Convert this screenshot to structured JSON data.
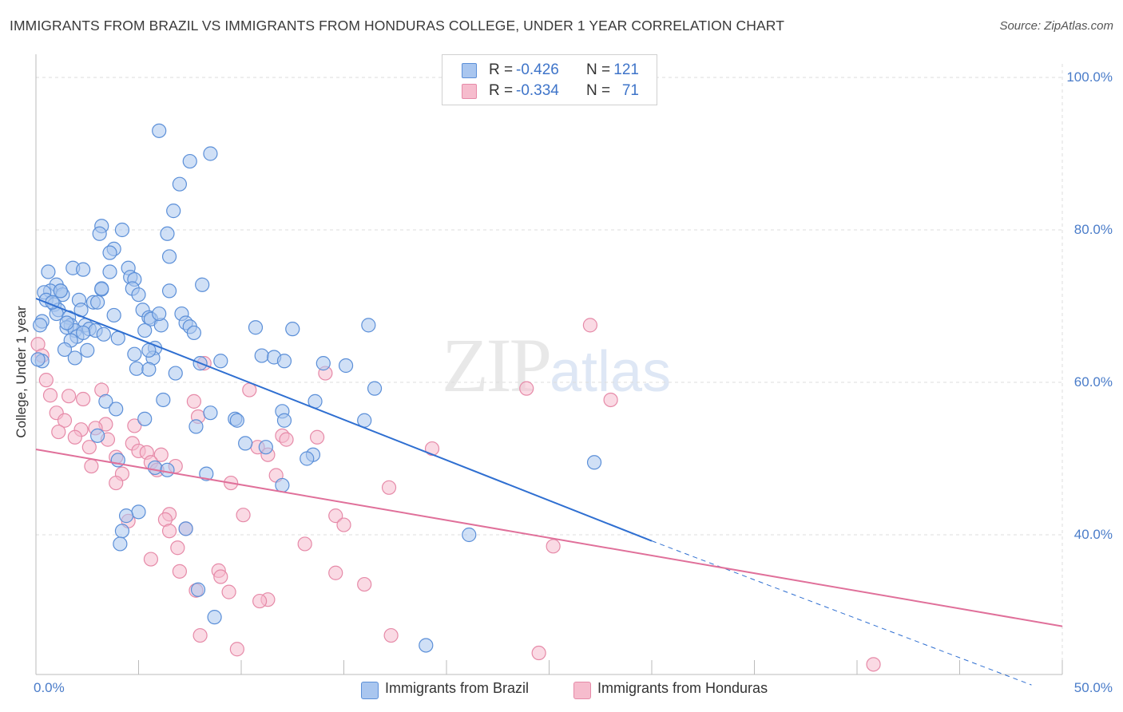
{
  "title": "IMMIGRANTS FROM BRAZIL VS IMMIGRANTS FROM HONDURAS COLLEGE, UNDER 1 YEAR CORRELATION CHART",
  "source": "Source: ZipAtlas.com",
  "watermark": {
    "zip": "ZIP",
    "atlas": "atlas"
  },
  "legend": {
    "brazil": {
      "r_label": "R =",
      "r_value": "-0.426",
      "n_label": "N =",
      "n_value": "121"
    },
    "honduras": {
      "r_label": "R =",
      "r_value": "-0.334",
      "n_label": "N =",
      "n_value": "71"
    }
  },
  "colors": {
    "brazil_fill": "#a9c6ef",
    "brazil_stroke": "#5b8fd8",
    "brazil_line": "#2f6fd1",
    "honduras_fill": "#f6bccd",
    "honduras_stroke": "#e68aa8",
    "honduras_line": "#e0709a",
    "tick_text": "#4a7cc9",
    "grid": "#dddddd"
  },
  "chart_data": {
    "type": "scatter",
    "title": "IMMIGRANTS FROM BRAZIL VS IMMIGRANTS FROM HONDURAS COLLEGE, UNDER 1 YEAR CORRELATION CHART",
    "xlabel": "",
    "ylabel": "College, Under 1 year",
    "x_tick_labels": [
      "0.0%",
      "50.0%"
    ],
    "y_tick_labels": [
      "40.0%",
      "60.0%",
      "80.0%",
      "100.0%"
    ],
    "xlim": [
      0,
      50
    ],
    "ylim": [
      21.5,
      104
    ],
    "grid": true,
    "legend_position": "top-center",
    "series": [
      {
        "name": "Immigrants from Brazil",
        "trendline": {
          "x": [
            0,
            30
          ],
          "y": [
            71.0,
            39.2
          ],
          "dashed_extension_to": [
            48.5,
            20.3
          ]
        },
        "points": [
          [
            6.0,
            93.0
          ],
          [
            8.5,
            90.0
          ],
          [
            7.5,
            89.0
          ],
          [
            7.0,
            86.0
          ],
          [
            6.7,
            82.5
          ],
          [
            3.2,
            80.5
          ],
          [
            4.2,
            80.0
          ],
          [
            3.1,
            79.5
          ],
          [
            6.4,
            79.5
          ],
          [
            3.8,
            77.5
          ],
          [
            3.6,
            77.0
          ],
          [
            6.5,
            76.5
          ],
          [
            1.8,
            75.0
          ],
          [
            4.5,
            75.0
          ],
          [
            2.3,
            74.8
          ],
          [
            0.6,
            74.5
          ],
          [
            3.6,
            74.5
          ],
          [
            4.6,
            73.8
          ],
          [
            4.8,
            73.5
          ],
          [
            1.0,
            72.8
          ],
          [
            1.2,
            72.0
          ],
          [
            8.1,
            72.8
          ],
          [
            0.7,
            72.0
          ],
          [
            0.4,
            71.8
          ],
          [
            4.7,
            72.3
          ],
          [
            3.2,
            72.2
          ],
          [
            6.5,
            72.0
          ],
          [
            5.0,
            71.5
          ],
          [
            1.3,
            71.5
          ],
          [
            2.1,
            70.8
          ],
          [
            0.5,
            70.8
          ],
          [
            2.8,
            70.5
          ],
          [
            3.0,
            70.5
          ],
          [
            0.9,
            70.2
          ],
          [
            1.1,
            69.5
          ],
          [
            2.2,
            69.5
          ],
          [
            5.2,
            69.5
          ],
          [
            7.1,
            69.0
          ],
          [
            1.0,
            69.0
          ],
          [
            3.8,
            68.8
          ],
          [
            1.6,
            68.5
          ],
          [
            5.5,
            68.5
          ],
          [
            5.6,
            68.3
          ],
          [
            0.3,
            68.0
          ],
          [
            1.7,
            67.5
          ],
          [
            7.3,
            67.8
          ],
          [
            1.5,
            67.2
          ],
          [
            2.4,
            67.5
          ],
          [
            6.1,
            67.5
          ],
          [
            7.5,
            67.3
          ],
          [
            1.9,
            66.8
          ],
          [
            2.6,
            67.0
          ],
          [
            2.9,
            66.8
          ],
          [
            10.7,
            67.2
          ],
          [
            12.5,
            67.0
          ],
          [
            16.2,
            67.5
          ],
          [
            5.3,
            66.8
          ],
          [
            7.7,
            66.5
          ],
          [
            2.0,
            66.0
          ],
          [
            3.3,
            66.3
          ],
          [
            1.7,
            65.5
          ],
          [
            4.0,
            65.8
          ],
          [
            5.8,
            64.5
          ],
          [
            1.4,
            64.3
          ],
          [
            2.5,
            64.2
          ],
          [
            4.8,
            63.7
          ],
          [
            1.9,
            63.2
          ],
          [
            5.7,
            63.2
          ],
          [
            11.0,
            63.5
          ],
          [
            11.6,
            63.3
          ],
          [
            0.3,
            62.8
          ],
          [
            8.0,
            62.5
          ],
          [
            9.0,
            62.8
          ],
          [
            14.0,
            62.5
          ],
          [
            12.1,
            62.8
          ],
          [
            15.1,
            62.2
          ],
          [
            4.9,
            61.8
          ],
          [
            5.5,
            61.7
          ],
          [
            6.8,
            61.2
          ],
          [
            16.5,
            59.2
          ],
          [
            6.2,
            57.7
          ],
          [
            3.4,
            57.5
          ],
          [
            13.6,
            57.5
          ],
          [
            3.9,
            56.5
          ],
          [
            8.5,
            56.0
          ],
          [
            12.0,
            56.2
          ],
          [
            5.3,
            55.2
          ],
          [
            9.7,
            55.2
          ],
          [
            9.8,
            55.0
          ],
          [
            12.1,
            55.0
          ],
          [
            16.0,
            55.0
          ],
          [
            7.8,
            54.2
          ],
          [
            3.0,
            53.0
          ],
          [
            10.2,
            52.0
          ],
          [
            11.2,
            51.5
          ],
          [
            13.5,
            50.5
          ],
          [
            13.2,
            50.0
          ],
          [
            27.2,
            49.5
          ],
          [
            4.0,
            49.8
          ],
          [
            5.8,
            48.8
          ],
          [
            6.4,
            48.5
          ],
          [
            8.3,
            48.0
          ],
          [
            12.0,
            46.5
          ],
          [
            5.0,
            43.0
          ],
          [
            4.4,
            42.5
          ],
          [
            7.3,
            40.8
          ],
          [
            4.2,
            40.5
          ],
          [
            21.1,
            40.0
          ],
          [
            4.1,
            38.8
          ],
          [
            7.9,
            32.8
          ],
          [
            8.7,
            29.2
          ],
          [
            19.0,
            25.5
          ],
          [
            0.1,
            63.0
          ],
          [
            0.2,
            67.5
          ],
          [
            1.2,
            72.0
          ],
          [
            0.8,
            70.5
          ],
          [
            2.3,
            66.5
          ],
          [
            1.5,
            67.8
          ],
          [
            3.2,
            72.3
          ],
          [
            6.0,
            69.0
          ],
          [
            5.5,
            64.2
          ]
        ]
      },
      {
        "name": "Immigrants from Honduras",
        "trendline": {
          "x": [
            0,
            50
          ],
          "y": [
            51.2,
            28.0
          ]
        },
        "points": [
          [
            0.1,
            65.0
          ],
          [
            0.5,
            60.3
          ],
          [
            27.0,
            67.5
          ],
          [
            23.9,
            59.2
          ],
          [
            8.2,
            62.5
          ],
          [
            14.1,
            61.2
          ],
          [
            10.4,
            59.0
          ],
          [
            0.7,
            58.3
          ],
          [
            1.6,
            58.2
          ],
          [
            2.3,
            57.8
          ],
          [
            3.2,
            59.0
          ],
          [
            7.7,
            57.5
          ],
          [
            28.0,
            57.7
          ],
          [
            1.0,
            56.0
          ],
          [
            7.9,
            55.5
          ],
          [
            3.4,
            54.5
          ],
          [
            1.4,
            55.0
          ],
          [
            2.2,
            53.8
          ],
          [
            4.8,
            54.3
          ],
          [
            2.9,
            54.0
          ],
          [
            1.1,
            53.5
          ],
          [
            12.0,
            53.0
          ],
          [
            13.7,
            52.8
          ],
          [
            12.2,
            52.5
          ],
          [
            1.9,
            52.8
          ],
          [
            3.5,
            52.5
          ],
          [
            4.7,
            52.0
          ],
          [
            2.6,
            51.5
          ],
          [
            5.0,
            51.0
          ],
          [
            5.4,
            50.8
          ],
          [
            10.8,
            51.5
          ],
          [
            11.3,
            50.5
          ],
          [
            19.3,
            51.3
          ],
          [
            6.1,
            50.5
          ],
          [
            3.9,
            50.2
          ],
          [
            5.6,
            49.5
          ],
          [
            2.7,
            49.0
          ],
          [
            5.9,
            48.5
          ],
          [
            4.2,
            48.0
          ],
          [
            11.7,
            47.8
          ],
          [
            3.9,
            46.8
          ],
          [
            9.5,
            46.8
          ],
          [
            17.2,
            46.2
          ],
          [
            6.5,
            42.7
          ],
          [
            10.1,
            42.6
          ],
          [
            14.6,
            42.5
          ],
          [
            6.3,
            42.0
          ],
          [
            4.5,
            41.8
          ],
          [
            15.0,
            41.3
          ],
          [
            7.3,
            40.8
          ],
          [
            6.5,
            40.5
          ],
          [
            13.1,
            38.8
          ],
          [
            25.2,
            38.5
          ],
          [
            6.9,
            38.3
          ],
          [
            5.6,
            36.8
          ],
          [
            8.9,
            35.3
          ],
          [
            14.6,
            35.0
          ],
          [
            7.0,
            35.2
          ],
          [
            9.0,
            34.5
          ],
          [
            16.0,
            33.5
          ],
          [
            7.8,
            32.7
          ],
          [
            9.4,
            32.5
          ],
          [
            11.3,
            31.5
          ],
          [
            10.9,
            31.3
          ],
          [
            8.0,
            26.8
          ],
          [
            17.3,
            26.8
          ],
          [
            9.8,
            25.0
          ],
          [
            24.5,
            24.5
          ],
          [
            40.8,
            23.0
          ],
          [
            0.3,
            63.5
          ],
          [
            6.8,
            49.0
          ]
        ]
      }
    ]
  },
  "bottom_legend": {
    "brazil": "Immigrants from Brazil",
    "honduras": "Immigrants from Honduras"
  }
}
